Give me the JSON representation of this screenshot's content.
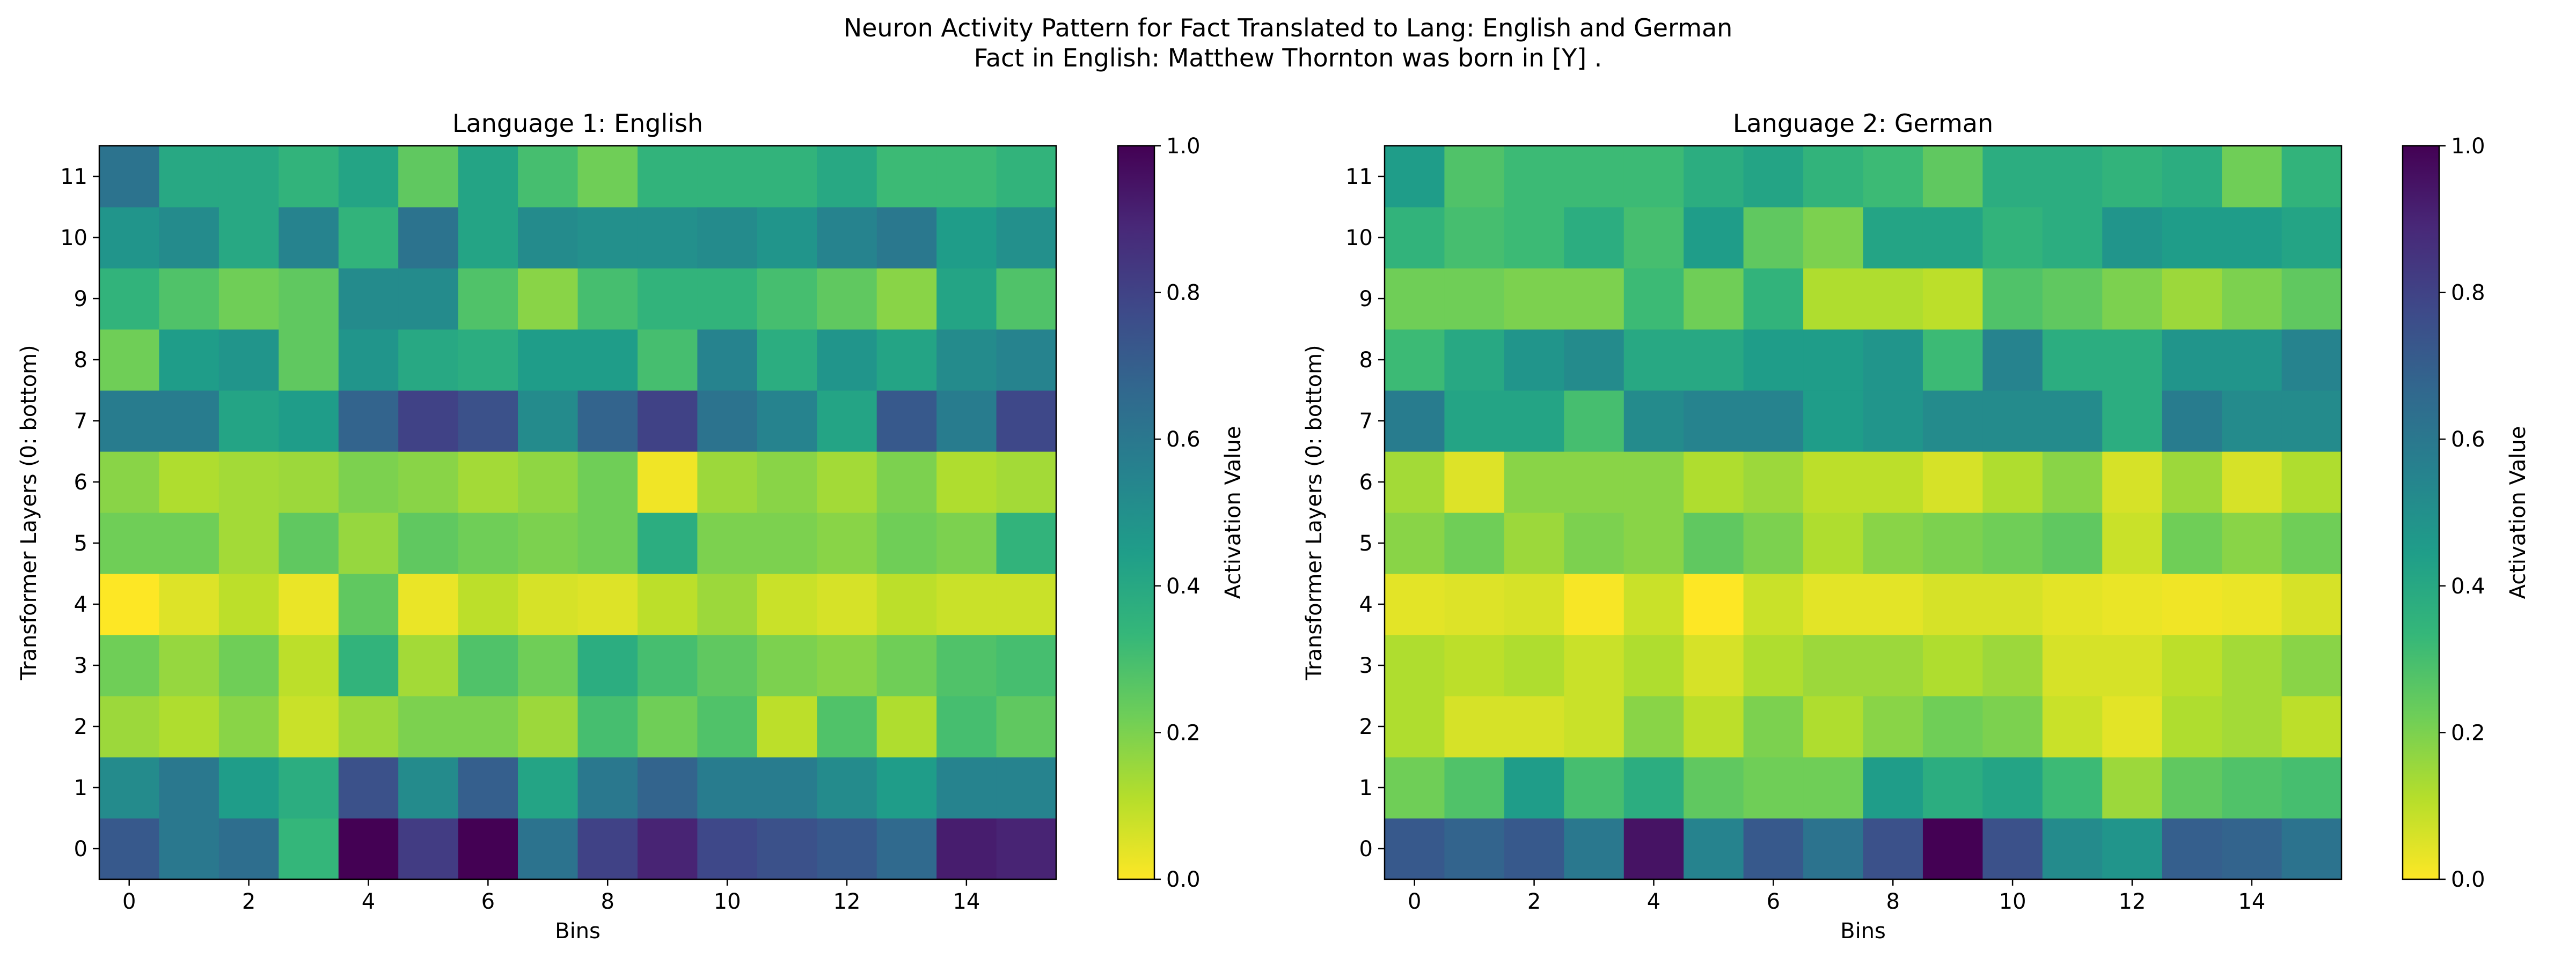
{
  "figure": {
    "title_line1": "Neuron Activity Pattern for Fact Translated to Lang: English and German",
    "title_line2": "Fact in English: Matthew Thornton was born in [Y] ."
  },
  "colormap": {
    "name": "viridis_r",
    "stops": [
      "#fde725",
      "#b5de2b",
      "#6ece58",
      "#35b779",
      "#1f9e89",
      "#26828e",
      "#31688e",
      "#3e4989",
      "#482878",
      "#440154"
    ]
  },
  "chart_data": [
    {
      "type": "heatmap",
      "title": "Language 1: English",
      "xlabel": "Bins",
      "ylabel": "Transformer Layers (0: bottom)",
      "x_ticks": [
        "0",
        "2",
        "4",
        "6",
        "8",
        "10",
        "12",
        "14"
      ],
      "y_ticks": [
        "0",
        "1",
        "2",
        "3",
        "4",
        "5",
        "6",
        "7",
        "8",
        "9",
        "10",
        "11"
      ],
      "colorbar_label": "Activation Value",
      "colorbar_ticks": [
        "0.0",
        "0.2",
        "0.4",
        "0.6",
        "0.8",
        "1.0"
      ],
      "vmin": 0.0,
      "vmax": 1.0,
      "rows_layer_0_to_11": [
        [
          0.72,
          0.6,
          0.64,
          0.34,
          1.0,
          0.82,
          1.0,
          0.62,
          0.8,
          0.9,
          0.78,
          0.75,
          0.72,
          0.66,
          0.92,
          0.9
        ],
        [
          0.52,
          0.6,
          0.45,
          0.38,
          0.75,
          0.52,
          0.7,
          0.42,
          0.6,
          0.68,
          0.58,
          0.58,
          0.52,
          0.45,
          0.55,
          0.55
        ],
        [
          0.15,
          0.12,
          0.18,
          0.08,
          0.15,
          0.2,
          0.2,
          0.15,
          0.3,
          0.22,
          0.28,
          0.1,
          0.28,
          0.12,
          0.3,
          0.25
        ],
        [
          0.22,
          0.16,
          0.22,
          0.1,
          0.35,
          0.14,
          0.28,
          0.22,
          0.38,
          0.3,
          0.25,
          0.2,
          0.18,
          0.22,
          0.28,
          0.3
        ],
        [
          0.0,
          0.05,
          0.1,
          0.03,
          0.25,
          0.03,
          0.1,
          0.06,
          0.05,
          0.1,
          0.15,
          0.08,
          0.06,
          0.1,
          0.08,
          0.08
        ],
        [
          0.22,
          0.22,
          0.14,
          0.25,
          0.16,
          0.25,
          0.22,
          0.2,
          0.22,
          0.38,
          0.2,
          0.2,
          0.18,
          0.22,
          0.2,
          0.35
        ],
        [
          0.18,
          0.12,
          0.14,
          0.15,
          0.2,
          0.18,
          0.14,
          0.17,
          0.22,
          0.02,
          0.15,
          0.18,
          0.14,
          0.2,
          0.12,
          0.14
        ],
        [
          0.58,
          0.58,
          0.42,
          0.45,
          0.68,
          0.8,
          0.75,
          0.52,
          0.68,
          0.8,
          0.62,
          0.55,
          0.42,
          0.72,
          0.58,
          0.78
        ],
        [
          0.22,
          0.45,
          0.48,
          0.25,
          0.48,
          0.4,
          0.38,
          0.45,
          0.45,
          0.3,
          0.55,
          0.38,
          0.48,
          0.42,
          0.52,
          0.55
        ],
        [
          0.35,
          0.28,
          0.22,
          0.25,
          0.52,
          0.52,
          0.28,
          0.18,
          0.3,
          0.35,
          0.35,
          0.3,
          0.25,
          0.18,
          0.42,
          0.28
        ],
        [
          0.48,
          0.52,
          0.4,
          0.55,
          0.35,
          0.62,
          0.42,
          0.52,
          0.5,
          0.5,
          0.52,
          0.48,
          0.55,
          0.6,
          0.45,
          0.5
        ],
        [
          0.62,
          0.4,
          0.4,
          0.35,
          0.42,
          0.25,
          0.42,
          0.3,
          0.22,
          0.35,
          0.35,
          0.35,
          0.4,
          0.32,
          0.32,
          0.35
        ]
      ]
    },
    {
      "type": "heatmap",
      "title": "Language 2: German",
      "xlabel": "Bins",
      "ylabel": "Transformer Layers (0: bottom)",
      "x_ticks": [
        "0",
        "2",
        "4",
        "6",
        "8",
        "10",
        "12",
        "14"
      ],
      "y_ticks": [
        "0",
        "1",
        "2",
        "3",
        "4",
        "5",
        "6",
        "7",
        "8",
        "9",
        "10",
        "11"
      ],
      "colorbar_label": "Activation Value",
      "colorbar_ticks": [
        "0.0",
        "0.2",
        "0.4",
        "0.6",
        "0.8",
        "1.0"
      ],
      "vmin": 0.0,
      "vmax": 1.0,
      "rows_layer_0_to_11": [
        [
          0.72,
          0.68,
          0.72,
          0.6,
          0.95,
          0.55,
          0.72,
          0.62,
          0.75,
          1.0,
          0.75,
          0.52,
          0.48,
          0.7,
          0.68,
          0.62
        ],
        [
          0.22,
          0.28,
          0.45,
          0.3,
          0.38,
          0.25,
          0.22,
          0.22,
          0.45,
          0.38,
          0.42,
          0.32,
          0.15,
          0.25,
          0.28,
          0.3
        ],
        [
          0.12,
          0.06,
          0.06,
          0.08,
          0.18,
          0.1,
          0.2,
          0.12,
          0.18,
          0.22,
          0.2,
          0.08,
          0.04,
          0.12,
          0.14,
          0.1
        ],
        [
          0.12,
          0.1,
          0.12,
          0.08,
          0.12,
          0.06,
          0.12,
          0.15,
          0.15,
          0.12,
          0.15,
          0.06,
          0.06,
          0.1,
          0.14,
          0.18
        ],
        [
          0.04,
          0.05,
          0.06,
          0.01,
          0.08,
          0.0,
          0.08,
          0.04,
          0.04,
          0.06,
          0.06,
          0.04,
          0.03,
          0.02,
          0.03,
          0.06
        ],
        [
          0.18,
          0.22,
          0.15,
          0.2,
          0.18,
          0.25,
          0.2,
          0.12,
          0.18,
          0.2,
          0.22,
          0.25,
          0.08,
          0.22,
          0.18,
          0.22
        ],
        [
          0.14,
          0.05,
          0.18,
          0.18,
          0.18,
          0.12,
          0.15,
          0.1,
          0.1,
          0.06,
          0.12,
          0.18,
          0.06,
          0.15,
          0.06,
          0.12
        ],
        [
          0.58,
          0.42,
          0.42,
          0.3,
          0.52,
          0.55,
          0.55,
          0.45,
          0.48,
          0.52,
          0.52,
          0.52,
          0.38,
          0.58,
          0.52,
          0.52
        ],
        [
          0.32,
          0.4,
          0.48,
          0.52,
          0.4,
          0.4,
          0.45,
          0.45,
          0.48,
          0.32,
          0.55,
          0.38,
          0.38,
          0.48,
          0.48,
          0.55
        ],
        [
          0.22,
          0.22,
          0.2,
          0.2,
          0.32,
          0.22,
          0.35,
          0.12,
          0.12,
          0.1,
          0.28,
          0.25,
          0.2,
          0.15,
          0.2,
          0.25
        ],
        [
          0.35,
          0.3,
          0.32,
          0.38,
          0.3,
          0.45,
          0.25,
          0.2,
          0.42,
          0.42,
          0.35,
          0.38,
          0.48,
          0.45,
          0.45,
          0.42
        ],
        [
          0.45,
          0.28,
          0.32,
          0.32,
          0.32,
          0.38,
          0.42,
          0.35,
          0.32,
          0.25,
          0.38,
          0.38,
          0.35,
          0.38,
          0.22,
          0.35
        ]
      ]
    }
  ]
}
